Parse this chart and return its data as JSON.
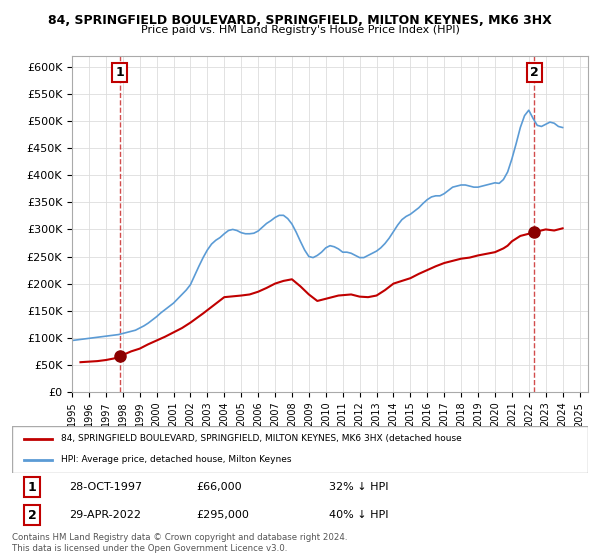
{
  "title": "84, SPRINGFIELD BOULEVARD, SPRINGFIELD, MILTON KEYNES, MK6 3HX",
  "subtitle": "Price paid vs. HM Land Registry's House Price Index (HPI)",
  "legend_line1": "84, SPRINGFIELD BOULEVARD, SPRINGFIELD, MILTON KEYNES, MK6 3HX (detached house",
  "legend_line2": "HPI: Average price, detached house, Milton Keynes",
  "annotation1_label": "1",
  "annotation1_date": "28-OCT-1997",
  "annotation1_price": 66000,
  "annotation1_note": "32% ↓ HPI",
  "annotation2_label": "2",
  "annotation2_date": "29-APR-2022",
  "annotation2_price": 295000,
  "annotation2_note": "40% ↓ HPI",
  "footer": "Contains HM Land Registry data © Crown copyright and database right 2024.\nThis data is licensed under the Open Government Licence v3.0.",
  "hpi_color": "#5B9BD5",
  "price_color": "#C00000",
  "marker_color": "#8B0000",
  "annotation_box_color": "#C00000",
  "background_color": "#FFFFFF",
  "grid_color": "#DDDDDD",
  "ylim": [
    0,
    620000
  ],
  "yticks": [
    0,
    50000,
    100000,
    150000,
    200000,
    250000,
    300000,
    350000,
    400000,
    450000,
    500000,
    550000,
    600000
  ],
  "sale1_x": 1997.83,
  "sale2_x": 2022.32,
  "hpi_years": [
    1995.0,
    1995.25,
    1995.5,
    1995.75,
    1996.0,
    1996.25,
    1996.5,
    1996.75,
    1997.0,
    1997.25,
    1997.5,
    1997.75,
    1998.0,
    1998.25,
    1998.5,
    1998.75,
    1999.0,
    1999.25,
    1999.5,
    1999.75,
    2000.0,
    2000.25,
    2000.5,
    2000.75,
    2001.0,
    2001.25,
    2001.5,
    2001.75,
    2002.0,
    2002.25,
    2002.5,
    2002.75,
    2003.0,
    2003.25,
    2003.5,
    2003.75,
    2004.0,
    2004.25,
    2004.5,
    2004.75,
    2005.0,
    2005.25,
    2005.5,
    2005.75,
    2006.0,
    2006.25,
    2006.5,
    2006.75,
    2007.0,
    2007.25,
    2007.5,
    2007.75,
    2008.0,
    2008.25,
    2008.5,
    2008.75,
    2009.0,
    2009.25,
    2009.5,
    2009.75,
    2010.0,
    2010.25,
    2010.5,
    2010.75,
    2011.0,
    2011.25,
    2011.5,
    2011.75,
    2012.0,
    2012.25,
    2012.5,
    2012.75,
    2013.0,
    2013.25,
    2013.5,
    2013.75,
    2014.0,
    2014.25,
    2014.5,
    2014.75,
    2015.0,
    2015.25,
    2015.5,
    2015.75,
    2016.0,
    2016.25,
    2016.5,
    2016.75,
    2017.0,
    2017.25,
    2017.5,
    2017.75,
    2018.0,
    2018.25,
    2018.5,
    2018.75,
    2019.0,
    2019.25,
    2019.5,
    2019.75,
    2020.0,
    2020.25,
    2020.5,
    2020.75,
    2021.0,
    2021.25,
    2021.5,
    2021.75,
    2022.0,
    2022.25,
    2022.5,
    2022.75,
    2023.0,
    2023.25,
    2023.5,
    2023.75,
    2024.0
  ],
  "hpi_values": [
    95000,
    96000,
    97000,
    98000,
    99000,
    100000,
    101000,
    102000,
    103000,
    104000,
    105000,
    106000,
    108000,
    110000,
    112000,
    114000,
    118000,
    122000,
    127000,
    133000,
    139000,
    146000,
    152000,
    158000,
    164000,
    172000,
    180000,
    188000,
    198000,
    215000,
    232000,
    248000,
    262000,
    273000,
    280000,
    285000,
    292000,
    298000,
    300000,
    298000,
    294000,
    292000,
    292000,
    293000,
    297000,
    304000,
    311000,
    316000,
    322000,
    326000,
    326000,
    320000,
    310000,
    295000,
    278000,
    262000,
    250000,
    248000,
    252000,
    258000,
    266000,
    270000,
    268000,
    264000,
    258000,
    258000,
    256000,
    252000,
    248000,
    248000,
    252000,
    256000,
    260000,
    266000,
    274000,
    284000,
    296000,
    308000,
    318000,
    324000,
    328000,
    334000,
    340000,
    348000,
    355000,
    360000,
    362000,
    362000,
    366000,
    372000,
    378000,
    380000,
    382000,
    382000,
    380000,
    378000,
    378000,
    380000,
    382000,
    384000,
    386000,
    385000,
    392000,
    406000,
    430000,
    458000,
    488000,
    510000,
    520000,
    505000,
    492000,
    490000,
    494000,
    498000,
    496000,
    490000,
    488000
  ],
  "price_years": [
    1995.5,
    1996.0,
    1996.5,
    1997.0,
    1997.5,
    1997.83,
    1998.5,
    1999.0,
    1999.5,
    2000.0,
    2000.5,
    2001.0,
    2001.5,
    2002.0,
    2002.75,
    2003.5,
    2004.0,
    2005.0,
    2005.5,
    2006.0,
    2006.5,
    2007.0,
    2007.5,
    2008.0,
    2008.5,
    2009.0,
    2009.5,
    2010.0,
    2010.75,
    2011.5,
    2012.0,
    2012.5,
    2013.0,
    2013.5,
    2014.0,
    2015.0,
    2015.5,
    2016.0,
    2016.5,
    2017.0,
    2017.5,
    2018.0,
    2018.5,
    2019.0,
    2019.5,
    2020.0,
    2020.5,
    2020.75,
    2021.0,
    2021.5,
    2022.0,
    2022.32,
    2023.0,
    2023.5,
    2024.0
  ],
  "price_values": [
    55000,
    56000,
    57000,
    59000,
    62000,
    66000,
    75000,
    80000,
    88000,
    95000,
    102000,
    110000,
    118000,
    128000,
    145000,
    163000,
    175000,
    178000,
    180000,
    185000,
    192000,
    200000,
    205000,
    208000,
    195000,
    180000,
    168000,
    172000,
    178000,
    180000,
    176000,
    175000,
    178000,
    188000,
    200000,
    210000,
    218000,
    225000,
    232000,
    238000,
    242000,
    246000,
    248000,
    252000,
    255000,
    258000,
    265000,
    270000,
    278000,
    288000,
    292000,
    295000,
    300000,
    298000,
    302000
  ]
}
